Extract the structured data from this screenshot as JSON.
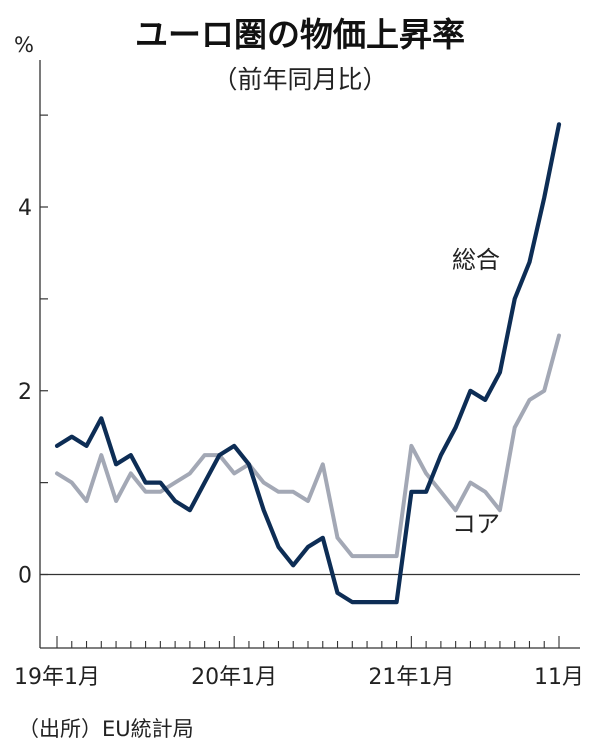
{
  "chart_data": {
    "type": "line",
    "title": "ユーロ圏の物価上昇率",
    "subtitle": "（前年同月比）",
    "unit_label": "%",
    "source": "（出所）EU統計局",
    "ylim": [
      -0.8,
      5.6
    ],
    "y_ticks": [
      {
        "value": 0,
        "label": "0"
      },
      {
        "value": 2,
        "label": "2"
      },
      {
        "value": 4,
        "label": "4"
      }
    ],
    "x_ticks": [
      {
        "index": 0,
        "label": "19年1月"
      },
      {
        "index": 12,
        "label": "20年1月"
      },
      {
        "index": 24,
        "label": "21年1月"
      },
      {
        "index": 34,
        "label": "11月"
      }
    ],
    "x": [
      "2019-01",
      "2019-02",
      "2019-03",
      "2019-04",
      "2019-05",
      "2019-06",
      "2019-07",
      "2019-08",
      "2019-09",
      "2019-10",
      "2019-11",
      "2019-12",
      "2020-01",
      "2020-02",
      "2020-03",
      "2020-04",
      "2020-05",
      "2020-06",
      "2020-07",
      "2020-08",
      "2020-09",
      "2020-10",
      "2020-11",
      "2020-12",
      "2021-01",
      "2021-02",
      "2021-03",
      "2021-04",
      "2021-05",
      "2021-06",
      "2021-07",
      "2021-08",
      "2021-09",
      "2021-10",
      "2021-11"
    ],
    "series": [
      {
        "name": "総合",
        "color": "#0d2d55",
        "values": [
          1.4,
          1.5,
          1.4,
          1.7,
          1.2,
          1.3,
          1.0,
          1.0,
          0.8,
          0.7,
          1.0,
          1.3,
          1.4,
          1.2,
          0.7,
          0.3,
          0.1,
          0.3,
          0.4,
          -0.2,
          -0.3,
          -0.3,
          -0.3,
          -0.3,
          0.9,
          0.9,
          1.3,
          1.6,
          2.0,
          1.9,
          2.2,
          3.0,
          3.4,
          4.1,
          4.9
        ]
      },
      {
        "name": "コア",
        "color": "#a3a8b5",
        "values": [
          1.1,
          1.0,
          0.8,
          1.3,
          0.8,
          1.1,
          0.9,
          0.9,
          1.0,
          1.1,
          1.3,
          1.3,
          1.1,
          1.2,
          1.0,
          0.9,
          0.9,
          0.8,
          1.2,
          0.4,
          0.2,
          0.2,
          0.2,
          0.2,
          1.4,
          1.1,
          0.9,
          0.7,
          1.0,
          0.9,
          0.7,
          1.6,
          1.9,
          2.0,
          2.6
        ]
      }
    ]
  }
}
